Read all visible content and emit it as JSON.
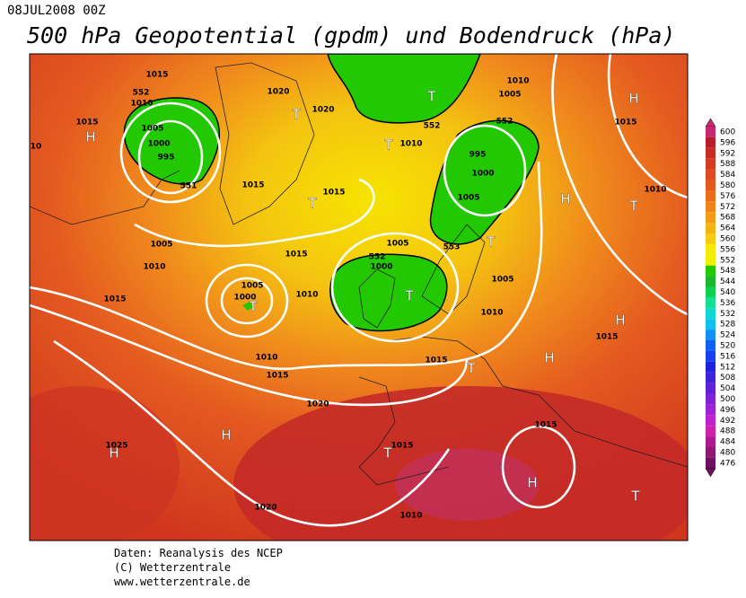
{
  "header": {
    "date": "08JUL2008 00Z",
    "title": "500 hPa Geopotential (gpdm) und Bodendruck (hPa)"
  },
  "map": {
    "labels": [
      "1015",
      "1010",
      "552",
      "1015",
      "1005",
      "1000",
      "995",
      "551",
      "H",
      "10",
      "1020",
      "T",
      "1020",
      "T",
      "1010",
      "T",
      "552",
      "1010",
      "1005",
      "552",
      "995",
      "1000",
      "1005",
      "1015",
      "1015",
      "T",
      "H",
      "1015",
      "H",
      "T",
      "1010",
      "1005",
      "1010",
      "1015",
      "1015",
      "1005",
      "552",
      "1000",
      "T",
      "1005",
      "1000",
      "T",
      "1010",
      "T",
      "553",
      "1005",
      "1010",
      "H",
      "1015",
      "1010",
      "1015",
      "1015",
      "T",
      "H",
      "1020",
      "H",
      "1025",
      "H",
      "1015",
      "T",
      "1015",
      "H",
      "T",
      "1020",
      "1010"
    ]
  },
  "colorbar": {
    "labels": [
      "600",
      "596",
      "592",
      "588",
      "584",
      "580",
      "576",
      "572",
      "568",
      "564",
      "560",
      "556",
      "552",
      "548",
      "544",
      "540",
      "536",
      "532",
      "528",
      "524",
      "520",
      "516",
      "512",
      "508",
      "504",
      "500",
      "496",
      "492",
      "488",
      "484",
      "480",
      "476"
    ],
    "colors": [
      "#c8286e",
      "#b81e28",
      "#c82a24",
      "#d63a22",
      "#e04a20",
      "#e65a1e",
      "#ec6e1c",
      "#f0841a",
      "#f49c18",
      "#f6b414",
      "#f8cc10",
      "#f8e80c",
      "#f0f000",
      "#22c800",
      "#18b828",
      "#10d050",
      "#10e090",
      "#10d8d0",
      "#10c0f0",
      "#1090f8",
      "#1060f8",
      "#1840f0",
      "#2020e0",
      "#4020d8",
      "#6020d8",
      "#8020d8",
      "#a020d8",
      "#c020d0",
      "#d020b0",
      "#b01890",
      "#901870",
      "#701060"
    ]
  },
  "footer": {
    "lines": [
      "Daten: Reanalysis des NCEP",
      "(C) Wetterzentrale",
      "www.wetterzentrale.de"
    ]
  }
}
